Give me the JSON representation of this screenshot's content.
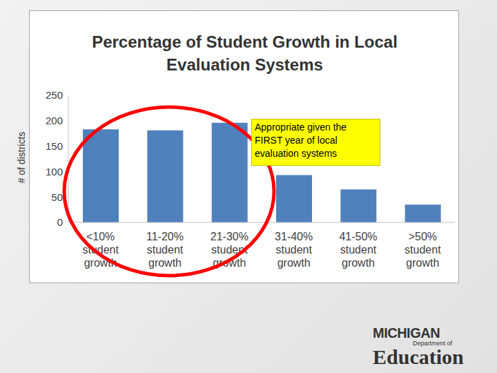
{
  "chart_data": {
    "type": "bar",
    "title": "Percentage of Student Growth in Local Evaluation Systems",
    "y_label": "# of districts",
    "categories": [
      "<10% student growth",
      "11-20% student growth",
      "21-30% student growth",
      "31-40% student growth",
      "41-50% student growth",
      ">50% student growth"
    ],
    "values": [
      183,
      181,
      196,
      93,
      65,
      35
    ],
    "color": "#4f81bd",
    "ylim": [
      0,
      250
    ],
    "yticks": [
      0,
      50,
      100,
      150,
      200,
      250
    ],
    "grid": false,
    "annotation": "Appropriate given the FIRST year of local evaluation systems"
  },
  "logo": {
    "name": "MICHIGAN",
    "department": "Department of",
    "subject": "Education"
  }
}
